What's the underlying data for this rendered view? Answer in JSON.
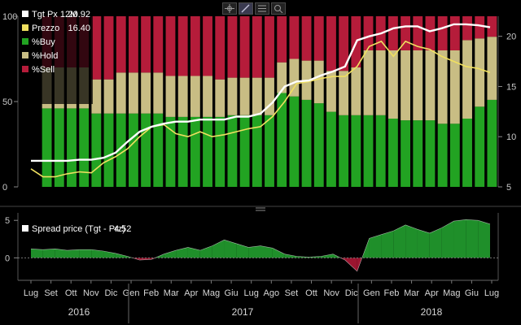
{
  "toolbar": {
    "icons": [
      "crosshair-icon",
      "pencil-icon",
      "list-icon",
      "zoom-icon"
    ]
  },
  "chart_data": {
    "type": "bar",
    "panels": [
      "ratings",
      "spread"
    ],
    "ratings_axis": {
      "ticks": [
        0,
        50,
        100
      ],
      "ylim": [
        0,
        100
      ]
    },
    "price_axis": {
      "ticks": [
        5,
        10,
        15,
        20
      ],
      "ylim": [
        5,
        22
      ]
    },
    "spread_axis": {
      "ticks": [
        0,
        5
      ],
      "ylim": [
        -3,
        6
      ]
    },
    "months": [
      "Lug",
      "Set",
      "Ott",
      "Nov",
      "Dic",
      "Gen",
      "Feb",
      "Mar",
      "Apr",
      "Mag",
      "Giu",
      "Lug",
      "Ago",
      "Set",
      "Ott",
      "Nov",
      "Dic",
      "Gen",
      "Feb",
      "Mar",
      "Apr",
      "Mag",
      "Giu",
      "Lug"
    ],
    "years": [
      "2016",
      "2017",
      "2018"
    ],
    "legend": [
      {
        "label": "Tgt Px 12M",
        "value": "20.92",
        "color": "#ffffff"
      },
      {
        "label": "Prezzo",
        "value": "16.40",
        "color": "#f0e060"
      },
      {
        "label": "%Buy",
        "value": "",
        "color": "#22a322"
      },
      {
        "label": "%Hold",
        "value": "",
        "color": "#c8bd84"
      },
      {
        "label": "%Sell",
        "value": "",
        "color": "#b51c3a"
      }
    ],
    "spread_legend": {
      "label": "Spread price (Tgt - Prz)",
      "value": "4.52",
      "color": "#ffffff"
    },
    "bars": {
      "buy": [
        46,
        46,
        46,
        46,
        43,
        43,
        43,
        43,
        43,
        43,
        41,
        41,
        41,
        41,
        41,
        42,
        42,
        42,
        42,
        55,
        53,
        51,
        49,
        44,
        42,
        42,
        42,
        42,
        40,
        39,
        39,
        39,
        37,
        37,
        40,
        47,
        51
      ],
      "hold": [
        24,
        24,
        24,
        24,
        20,
        20,
        24,
        24,
        24,
        24,
        24,
        24,
        24,
        24,
        22,
        22,
        22,
        22,
        22,
        18,
        22,
        23,
        25,
        24,
        26,
        28,
        38,
        38,
        40,
        41,
        41,
        41,
        43,
        43,
        46,
        40,
        37
      ]
    },
    "target_price": [
      7.6,
      7.6,
      7.6,
      7.6,
      7.7,
      7.7,
      7.9,
      8.4,
      9.5,
      10.5,
      11.0,
      11.3,
      11.5,
      11.5,
      11.7,
      11.7,
      11.7,
      12.0,
      12.0,
      12.3,
      13.4,
      15.0,
      15.5,
      15.6,
      16.1,
      16.5,
      17.0,
      19.6,
      20.0,
      20.3,
      20.8,
      21.0,
      21.0,
      20.5,
      20.8,
      21.2,
      21.2,
      21.1,
      20.9
    ],
    "price": [
      6.8,
      6.0,
      6.0,
      6.3,
      6.5,
      6.4,
      7.4,
      8.0,
      8.8,
      10.0,
      11.0,
      11.2,
      10.3,
      10.0,
      10.5,
      10.0,
      10.2,
      10.5,
      10.8,
      11.0,
      12.0,
      13.5,
      15.3,
      15.5,
      15.8,
      16.0,
      16.0,
      17.0,
      19.0,
      19.5,
      18.0,
      19.5,
      19.0,
      18.7,
      18.0,
      17.5,
      17.0,
      16.8,
      16.4
    ],
    "spread": [
      1.2,
      1.1,
      1.2,
      1.0,
      1.1,
      1.1,
      0.9,
      0.6,
      0.2,
      -0.3,
      -0.2,
      0.5,
      1.0,
      1.4,
      1.0,
      1.6,
      2.4,
      1.9,
      1.4,
      1.6,
      1.3,
      0.5,
      0.2,
      0.1,
      0.2,
      0.5,
      -0.3,
      -1.8,
      2.6,
      3.1,
      3.6,
      4.4,
      3.8,
      3.3,
      4.0,
      4.9,
      5.1,
      5.0,
      4.5
    ]
  }
}
